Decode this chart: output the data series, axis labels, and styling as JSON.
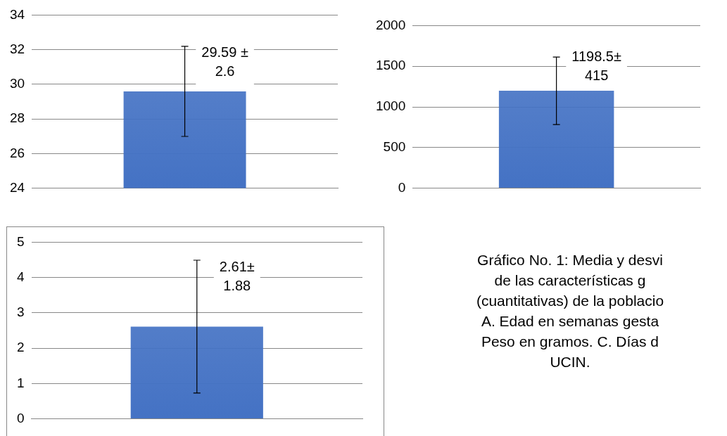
{
  "chart_data": [
    {
      "type": "bar",
      "categories": [
        null
      ],
      "values": [
        29.59
      ],
      "errors": [
        2.6
      ],
      "color": "#4472c4",
      "value_labels": [
        "29.59 ± 2.6"
      ],
      "ylim": [
        24,
        34
      ],
      "yticks": [
        24,
        26,
        28,
        30,
        32,
        34
      ],
      "grid": "y",
      "legend": false
    },
    {
      "type": "bar",
      "categories": [
        null
      ],
      "values": [
        1198.5
      ],
      "errors": [
        415
      ],
      "color": "#4472c4",
      "value_labels": [
        "1198.5± 415"
      ],
      "ylim": [
        0,
        2000
      ],
      "yticks": [
        0,
        500,
        1000,
        1500,
        2000
      ],
      "grid": "y",
      "legend": false
    },
    {
      "type": "bar",
      "categories": [
        null
      ],
      "values": [
        2.61
      ],
      "errors": [
        1.88
      ],
      "color": "#4472c4",
      "value_labels": [
        "2.61± 1.88"
      ],
      "ylim": [
        0,
        5
      ],
      "yticks": [
        0,
        1,
        2,
        3,
        4,
        5
      ],
      "grid": "y",
      "legend": false
    },
    {
      "type": "other",
      "annotations": [
        "Gráfico No. 1: Media y desvi",
        "de las características g",
        "(cuantitativas) de la poblacio",
        "A. Edad en semanas gesta",
        "Peso en gramos.  C. Días d",
        "UCIN."
      ]
    }
  ]
}
